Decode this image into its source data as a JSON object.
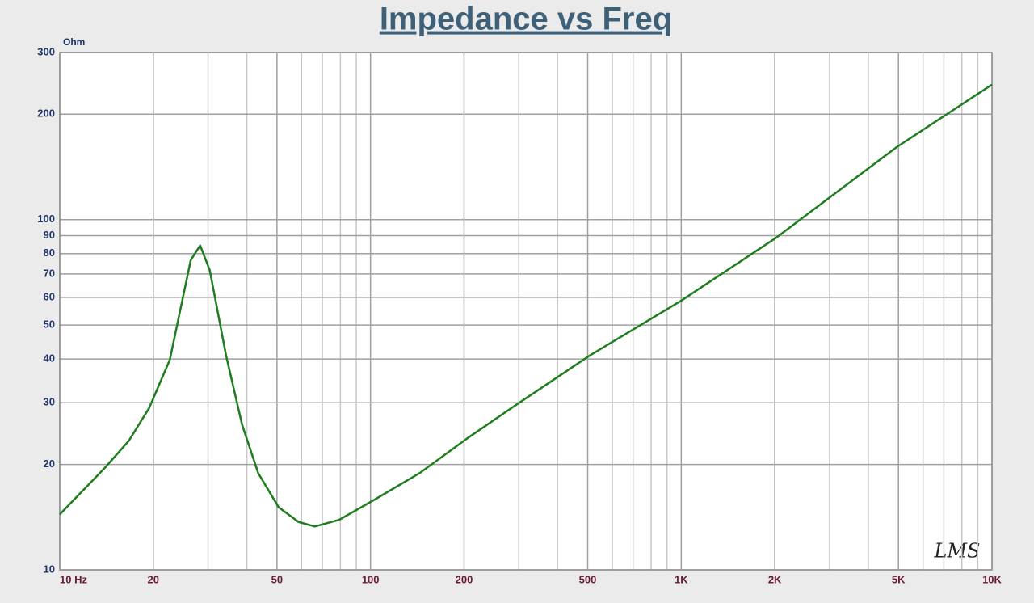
{
  "chart_data": {
    "type": "line",
    "title": "Impedance vs Freq",
    "y_label": "Ohm",
    "watermark": "LMS",
    "x": [
      10,
      14,
      16.7,
      19.4,
      22.6,
      26.4,
      28.3,
      30.4,
      34.3,
      38.6,
      43.5,
      50.6,
      58.7,
      66.2,
      79.3,
      101,
      144,
      207,
      296,
      507,
      1000,
      2010,
      4930,
      10000
    ],
    "series": [
      {
        "name": "Impedance",
        "color": "#1e7d1e",
        "values": [
          14.4,
          19.6,
          23.4,
          29,
          39.8,
          76.7,
          84.4,
          71.6,
          40.9,
          26,
          18.9,
          15.1,
          13.7,
          13.3,
          13.9,
          15.7,
          18.9,
          23.9,
          29.7,
          40.9,
          58.7,
          88.5,
          161,
          243
        ]
      }
    ],
    "xscale": "log",
    "yscale": "log",
    "xlim": [
      10,
      10000
    ],
    "ylim": [
      10,
      300
    ],
    "xticks": [
      {
        "value": 10,
        "label": "10 Hz"
      },
      20,
      50,
      100,
      200,
      500,
      {
        "value": 1000,
        "label": "1K"
      },
      {
        "value": 2000,
        "label": "2K"
      },
      {
        "value": 5000,
        "label": "5K"
      },
      {
        "value": 10000,
        "label": "10K"
      }
    ],
    "xminor": [
      30,
      40,
      60,
      70,
      80,
      90,
      300,
      400,
      600,
      700,
      800,
      900,
      3000,
      4000,
      6000,
      7000,
      8000,
      9000
    ],
    "yticks": [
      10,
      20,
      30,
      40,
      50,
      60,
      70,
      80,
      90,
      100,
      200,
      300
    ],
    "grid": true
  }
}
